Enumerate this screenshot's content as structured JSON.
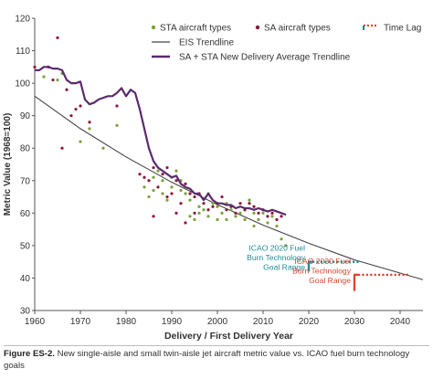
{
  "chart_data": {
    "type": "scatter",
    "xlabel": "Delivery / First Delivery Year",
    "ylabel": "Metric Value (1968=100)",
    "xlim": [
      1960,
      2045
    ],
    "ylim": [
      30,
      120
    ],
    "xticks": [
      1960,
      1970,
      1980,
      1990,
      2000,
      2010,
      2020,
      2030,
      2040
    ],
    "yticks": [
      30,
      40,
      50,
      60,
      70,
      80,
      90,
      100,
      110,
      120
    ],
    "grid": false,
    "legend": {
      "placement": "top",
      "sta": "STA aircraft types",
      "sa": "SA aircraft types",
      "timelag": "Time Lag",
      "eis": "EIS Trendline",
      "avg": "SA + STA New Delivery Average Trendline"
    },
    "colors": {
      "sta": "#7aa23c",
      "sa": "#8b1a3a",
      "avg": "#5b2a6e",
      "eis": "#444444",
      "icao2020": "#1f8a9a",
      "icao2030": "#d9472b",
      "axis": "#555555"
    },
    "eis_trendline": {
      "x": [
        1960,
        1970,
        1980,
        1990,
        2000,
        2010,
        2020,
        2030,
        2045
      ],
      "y": [
        96,
        86,
        77.3,
        69.5,
        62.6,
        56.3,
        50.7,
        45.6,
        39.5
      ]
    },
    "average_trendline": {
      "x": [
        1960,
        1961,
        1962,
        1963,
        1964,
        1965,
        1966,
        1967,
        1968,
        1969,
        1970,
        1971,
        1972,
        1973,
        1974,
        1975,
        1976,
        1977,
        1978,
        1979,
        1980,
        1981,
        1982,
        1983,
        1984,
        1985,
        1986,
        1987,
        1988,
        1989,
        1990,
        1991,
        1992,
        1993,
        1994,
        1995,
        1996,
        1997,
        1998,
        1999,
        2000,
        2001,
        2002,
        2003,
        2004,
        2005,
        2006,
        2007,
        2008,
        2009,
        2010,
        2011,
        2012,
        2013,
        2014,
        2015
      ],
      "y": [
        104,
        104,
        105,
        105,
        104.5,
        104.5,
        104,
        101,
        100,
        100,
        100.5,
        95,
        93.5,
        94,
        95,
        95.5,
        96,
        96,
        97,
        98.5,
        96,
        98,
        97,
        92,
        86,
        80,
        76,
        74,
        73,
        72,
        71,
        71.5,
        69,
        68,
        67.5,
        66,
        66,
        64,
        66,
        64,
        63,
        63,
        62.5,
        62.5,
        61.5,
        62,
        61.5,
        61.5,
        61,
        61.5,
        61,
        60.5,
        61,
        60.5,
        60,
        59.5
      ]
    },
    "sta_points": {
      "x": [
        1962,
        1965,
        1966,
        1970,
        1972,
        1975,
        1978,
        1984,
        1985,
        1986,
        1986,
        1987,
        1988,
        1988,
        1989,
        1990,
        1990,
        1991,
        1992,
        1992,
        1993,
        1994,
        1994,
        1995,
        1996,
        1996,
        1997,
        1998,
        1998,
        1999,
        2000,
        2000,
        2001,
        2002,
        2002,
        2003,
        2004,
        2005,
        2006,
        2006,
        2007,
        2008,
        2008,
        2009,
        2010,
        2011,
        2012,
        2013,
        2014,
        2015
      ],
      "y": [
        102,
        101,
        103,
        82,
        86,
        80,
        87,
        68,
        65,
        67,
        71,
        73,
        70,
        66,
        64,
        71,
        68,
        73,
        67,
        70,
        66,
        64,
        59,
        58,
        60,
        62,
        61,
        59,
        66,
        63,
        58,
        62,
        60,
        58,
        63,
        61,
        59,
        60,
        58,
        61,
        64,
        60,
        56,
        58,
        60,
        57,
        59,
        56,
        52,
        50
      ]
    },
    "sa_points": {
      "x": [
        1960,
        1963,
        1964,
        1965,
        1966,
        1967,
        1968,
        1969,
        1970,
        1972,
        1978,
        1983,
        1984,
        1985,
        1986,
        1986,
        1987,
        1988,
        1989,
        1989,
        1990,
        1991,
        1991,
        1992,
        1993,
        1993,
        1994,
        1995,
        1995,
        1996,
        1997,
        1998,
        1999,
        2000,
        2001,
        2002,
        2003,
        2004,
        2005,
        2006,
        2007,
        2008,
        2009,
        2010,
        2011,
        2012,
        2013,
        2014
      ],
      "y": [
        105,
        105,
        101,
        114,
        80,
        98,
        90,
        92,
        93,
        88,
        93,
        72,
        71,
        70,
        74,
        59,
        68,
        72,
        65,
        74,
        66,
        70,
        60,
        63,
        69,
        57,
        66,
        65,
        60,
        66,
        63,
        61,
        62,
        63,
        65,
        61,
        62,
        60,
        63,
        61,
        63,
        62,
        60,
        61,
        59,
        60,
        58,
        59
      ]
    },
    "icao_goals": [
      {
        "label_lines": [
          "ICAO 2020 Fuel",
          "Burn Technology",
          "Goal Range"
        ],
        "year": 2020,
        "top": 45,
        "bottom": 42,
        "lag_end": 2031
      },
      {
        "label_lines": [
          "ICAO 2030 Fuel",
          "Burn Technology",
          "Goal Range"
        ],
        "year": 2030,
        "top": 41,
        "bottom": 36,
        "lag_end": 2042
      }
    ]
  },
  "caption": {
    "lead": "Figure ES-2.",
    "text": " New single-aisle and small twin-aisle jet aircraft metric value vs. ICAO fuel burn technology goals"
  }
}
